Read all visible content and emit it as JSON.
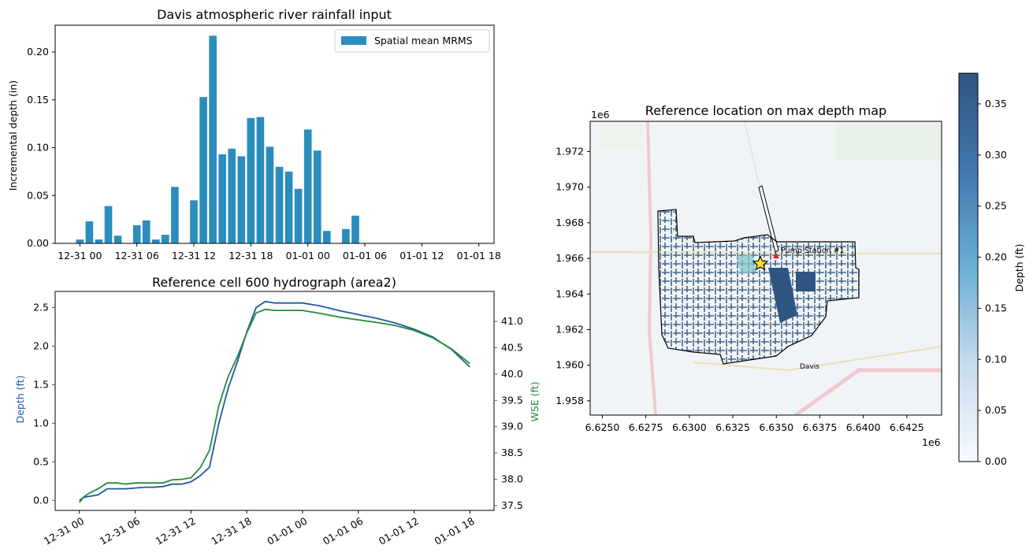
{
  "colors": {
    "bar": "#2b8cbe",
    "depth_line": "#1f5aa0",
    "wse_line": "#228b3b",
    "depth_axis": "#1f5aa0",
    "wse_axis": "#228b3b",
    "boundary": "#000000",
    "station_marker": "#e41a1c",
    "star": "#ffe11a",
    "map_bg": "#f1f4f6",
    "colorbar_min": "#f7fbff",
    "colorbar_max": "#2f5582"
  },
  "chart_data": [
    {
      "type": "bar",
      "title": "Davis atmospheric river rainfall input",
      "xlabel": "",
      "ylabel": "Incremental depth (in)",
      "legend": {
        "placement": "top-right",
        "entries": [
          "Spatial mean MRMS"
        ]
      },
      "x_ticks": [
        "12-31 00",
        "12-31 06",
        "12-31 12",
        "12-31 18",
        "01-01 00",
        "01-01 06",
        "01-01 12",
        "01-01 18"
      ],
      "y_ticks": [
        "0.00",
        "0.05",
        "0.10",
        "0.15",
        "0.20"
      ],
      "xlim_hours": [
        -2.6,
        43.6
      ],
      "ylim": [
        0,
        0.228
      ],
      "series": [
        {
          "name": "Spatial mean MRMS",
          "hours": [
            0,
            1,
            2,
            3,
            4,
            5,
            6,
            7,
            8,
            9,
            10,
            11,
            12,
            13,
            14,
            15,
            16,
            17,
            18,
            19,
            20,
            21,
            22,
            23,
            24,
            25,
            26,
            27,
            28,
            29,
            30,
            31,
            32,
            33,
            34,
            35,
            36,
            37,
            38,
            39,
            40,
            41,
            42
          ],
          "values": [
            0.004,
            0.023,
            0.004,
            0.039,
            0.008,
            0,
            0.019,
            0.024,
            0.004,
            0.009,
            0.059,
            0,
            0.045,
            0.153,
            0.217,
            0.093,
            0.099,
            0.091,
            0.131,
            0.132,
            0.101,
            0.08,
            0.075,
            0.057,
            0.119,
            0.097,
            0.013,
            0,
            0.015,
            0.029,
            0,
            0,
            0,
            0,
            0,
            0,
            0,
            0,
            0,
            0,
            0,
            0,
            0
          ]
        }
      ],
      "grid": false
    },
    {
      "type": "line",
      "title": "Reference cell 600 hydrograph (area2)",
      "xlabel": "",
      "ylabel": "Depth (ft)",
      "y2label": "WSE (ft)",
      "x_ticks": [
        "12-31 00",
        "12-31 06",
        "12-31 12",
        "12-31 18",
        "01-01 00",
        "01-01 06",
        "01-01 12",
        "01-01 18"
      ],
      "y_ticks": [
        "0.0",
        "0.5",
        "1.0",
        "1.5",
        "2.0",
        "2.5"
      ],
      "y2_ticks": [
        "37.5",
        "38.0",
        "38.5",
        "39.0",
        "39.5",
        "40.0",
        "40.5",
        "41.0"
      ],
      "xlim_hours": [
        -2.6,
        44.6
      ],
      "ylim": [
        -0.13,
        2.71
      ],
      "y2lim": [
        37.41,
        41.57
      ],
      "series": [
        {
          "name": "Depth (ft)",
          "axis": "left",
          "x_hours": [
            0,
            0.5,
            1,
            2,
            3,
            4,
            5,
            6,
            7,
            8,
            9,
            10,
            11,
            12,
            13,
            14,
            15,
            16,
            17,
            18,
            19,
            20,
            21,
            22,
            24,
            26,
            28,
            30,
            32,
            34,
            36,
            38,
            40,
            42
          ],
          "y": [
            0,
            0.04,
            0.05,
            0.07,
            0.15,
            0.15,
            0.15,
            0.16,
            0.17,
            0.17,
            0.18,
            0.21,
            0.21,
            0.24,
            0.32,
            0.43,
            1.0,
            1.45,
            1.8,
            2.18,
            2.5,
            2.58,
            2.56,
            2.56,
            2.56,
            2.52,
            2.46,
            2.41,
            2.36,
            2.3,
            2.22,
            2.12,
            1.96,
            1.73
          ]
        },
        {
          "name": "WSE (ft)",
          "axis": "right",
          "x_hours": [
            0,
            0.5,
            1,
            2,
            3,
            4,
            5,
            6,
            7,
            8,
            9,
            10,
            11,
            12,
            13,
            14,
            15,
            16,
            17,
            18,
            19,
            20,
            21,
            22,
            24,
            26,
            28,
            30,
            32,
            34,
            36,
            38,
            40,
            42
          ],
          "y": [
            37.56,
            37.67,
            37.73,
            37.82,
            37.93,
            37.93,
            37.91,
            37.93,
            37.93,
            37.93,
            37.93,
            37.99,
            38.0,
            38.03,
            38.22,
            38.55,
            39.4,
            39.95,
            40.33,
            40.78,
            41.16,
            41.23,
            41.21,
            41.21,
            41.21,
            41.15,
            41.08,
            41.03,
            40.98,
            40.92,
            40.83,
            40.69,
            40.48,
            40.2
          ]
        }
      ],
      "grid": false
    },
    {
      "type": "heatmap",
      "title": "Reference location on max depth map",
      "x_offset_label": "1e6",
      "y_offset_label": "1e6",
      "x_ticks": [
        "6.6250",
        "6.6275",
        "6.6300",
        "6.6325",
        "6.6350",
        "6.6375",
        "6.6400",
        "6.6425"
      ],
      "y_ticks": [
        "1.958",
        "1.960",
        "1.962",
        "1.964",
        "1.966",
        "1.968",
        "1.970",
        "1.972"
      ],
      "xlim": [
        6.6243,
        6.6445
      ],
      "ylim": [
        1.9572,
        1.9737
      ],
      "annotations": [
        "Pump Station #1",
        "Davis"
      ],
      "pump_station": {
        "x": 6.635,
        "y": 1.9661
      },
      "reference_star": {
        "x": 6.6341,
        "y": 1.9657
      },
      "colorbar": {
        "label": "Depth (ft)",
        "range": [
          0,
          0.38
        ],
        "ticks": [
          "0.00",
          "0.05",
          "0.10",
          "0.15",
          "0.20",
          "0.25",
          "0.30",
          "0.35"
        ]
      }
    }
  ]
}
